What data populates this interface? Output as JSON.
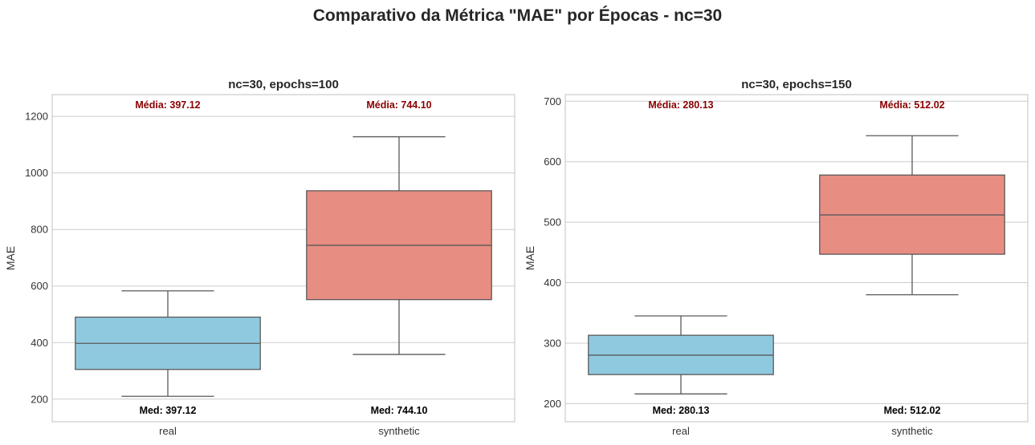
{
  "figure": {
    "suptitle": "Comparativo da Métrica \"MAE\" por Épocas - nc=30"
  },
  "colors": {
    "real": "#8fc9e0",
    "synthetic": "#e88d82",
    "mean_label": "#8b0000",
    "median_label": "#000000",
    "box_edge": "#5a5a5a",
    "grid": "#cccccc",
    "frame": "#cccccc"
  },
  "chart_data": [
    {
      "type": "box",
      "title": "nc=30, epochs=100",
      "xlabel": "",
      "ylabel": "MAE",
      "ylim": [
        120,
        1277
      ],
      "yticks": [
        200,
        400,
        600,
        800,
        1000,
        1200
      ],
      "ytick_labels": [
        "200",
        "400",
        "600",
        "800",
        "1000",
        "1200"
      ],
      "grid": true,
      "categories": [
        "real",
        "synthetic"
      ],
      "boxes": [
        {
          "category": "real",
          "whisker_low": 210,
          "q1": 305,
          "median": 397.12,
          "q3": 490,
          "whisker_high": 583,
          "mean_label": "Média: 397.12",
          "median_label": "Med: 397.12"
        },
        {
          "category": "synthetic",
          "whisker_low": 358,
          "q1": 552,
          "median": 744.1,
          "q3": 937,
          "whisker_high": 1128,
          "mean_label": "Média: 744.10",
          "median_label": "Med: 744.10"
        }
      ]
    },
    {
      "type": "box",
      "title": "nc=30, epochs=150",
      "xlabel": "",
      "ylabel": "MAE",
      "ylim": [
        170,
        711
      ],
      "yticks": [
        200,
        300,
        400,
        500,
        600,
        700
      ],
      "ytick_labels": [
        "200",
        "300",
        "400",
        "500",
        "600",
        "700"
      ],
      "grid": true,
      "categories": [
        "real",
        "synthetic"
      ],
      "boxes": [
        {
          "category": "real",
          "whisker_low": 216,
          "q1": 248,
          "median": 280.13,
          "q3": 313,
          "whisker_high": 345,
          "mean_label": "Média: 280.13",
          "median_label": "Med: 280.13"
        },
        {
          "category": "synthetic",
          "whisker_low": 380,
          "q1": 447,
          "median": 512.02,
          "q3": 578,
          "whisker_high": 643,
          "mean_label": "Média: 512.02",
          "median_label": "Med: 512.02"
        }
      ]
    }
  ]
}
